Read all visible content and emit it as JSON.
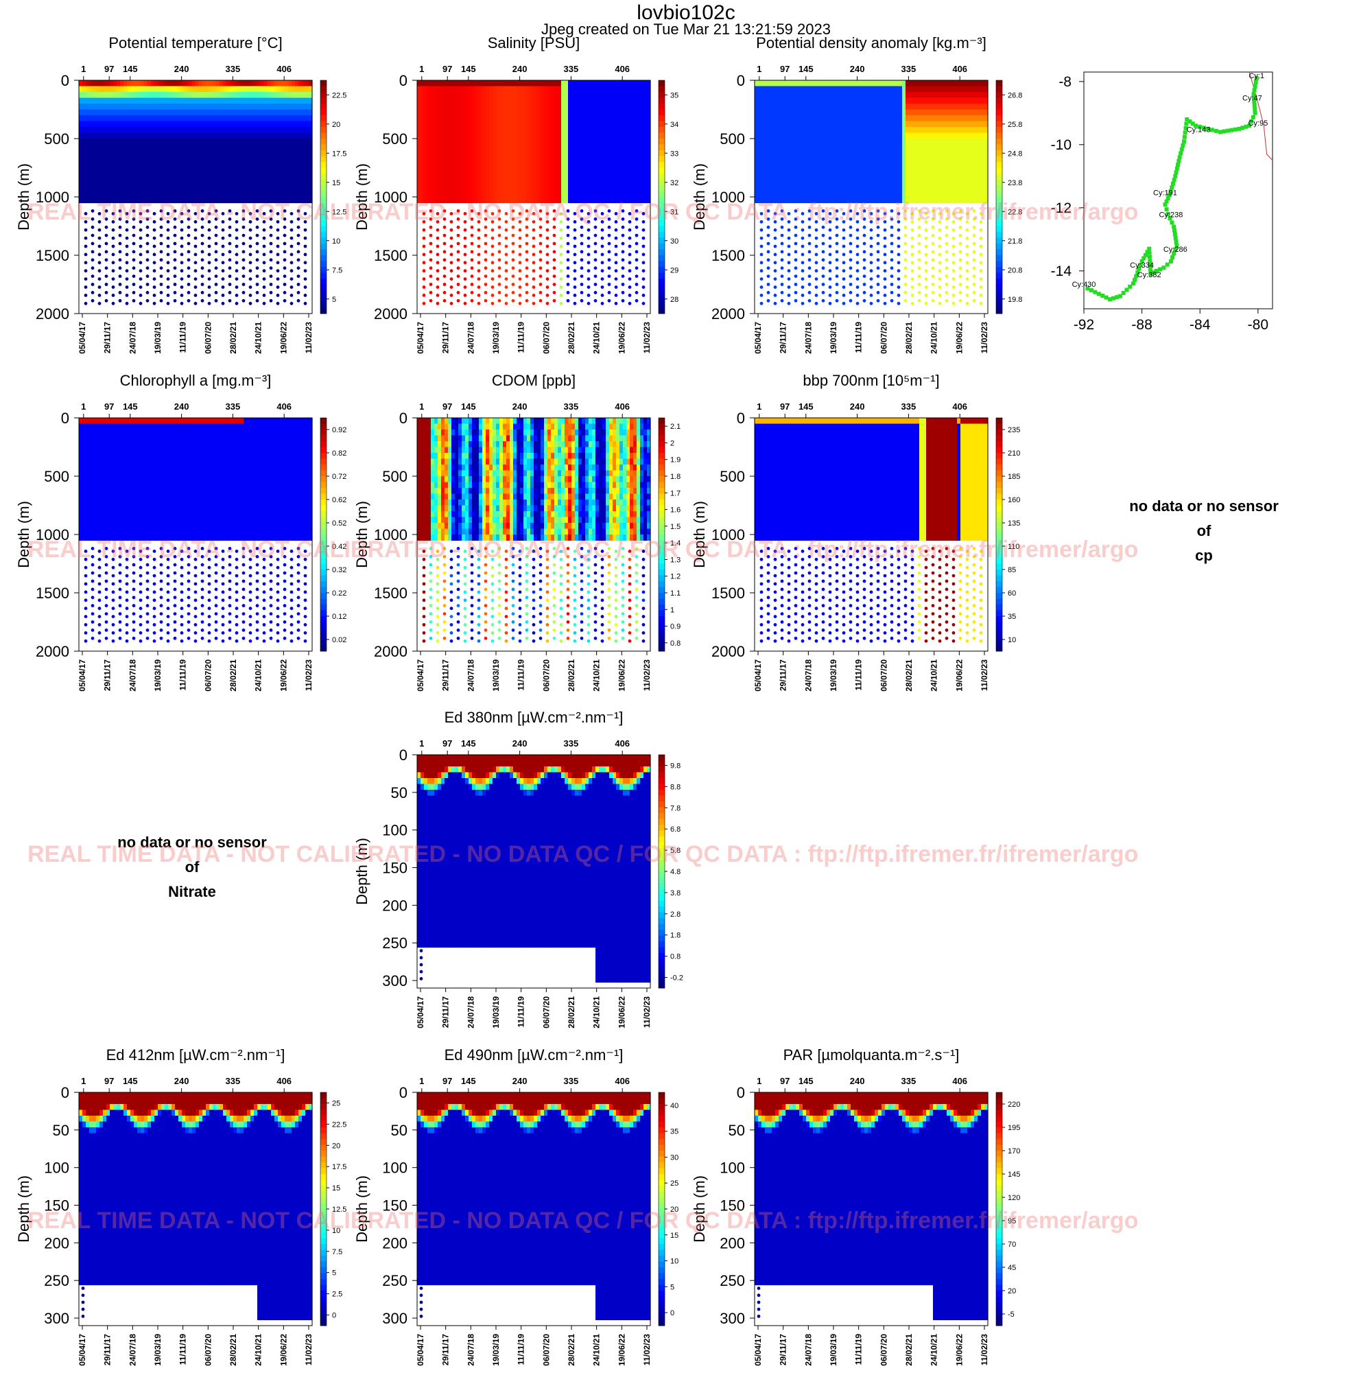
{
  "header": {
    "title": "lovbio102c",
    "subtitle": "Jpeg created on  Tue Mar 21 13:21:59 2023"
  },
  "watermark": "REAL TIME DATA - NOT CALIBRATED - NO DATA QC  /  FOR QC DATA : ftp://ftp.ifremer.fr/ifremer/argo",
  "common": {
    "cycle_ticks": [
      "1",
      "97",
      "145",
      "240",
      "335",
      "406"
    ],
    "date_ticks": [
      "05/04/17",
      "29/11/17",
      "24/07/18",
      "19/03/19",
      "11/11/19",
      "06/07/20",
      "28/02/21",
      "24/10/21",
      "19/06/22",
      "11/02/23"
    ],
    "ylabel": "Depth (m)"
  },
  "no_data": [
    {
      "line1": "no data or no sensor",
      "line2": "of",
      "line3": "cp"
    },
    {
      "line1": "no data or no sensor",
      "line2": "of",
      "line3": "Nitrate"
    }
  ],
  "chart_data": [
    {
      "type": "heatmap",
      "title": "Potential temperature [°C]",
      "ylabel": "Depth (m)",
      "ylim": [
        2000,
        0
      ],
      "y_ticks": [
        "0",
        "500",
        "1000",
        "1500",
        "2000"
      ],
      "colorbar": [
        "22.5",
        "20",
        "17.5",
        "15",
        "12.5",
        "10",
        "7.5",
        "5"
      ],
      "colorscale": "jet"
    },
    {
      "type": "heatmap",
      "title": "Salinity [PSU]",
      "ylabel": "Depth (m)",
      "ylim": [
        2000,
        0
      ],
      "y_ticks": [
        "0",
        "500",
        "1000",
        "1500",
        "2000"
      ],
      "colorbar": [
        "35",
        "34",
        "33",
        "32",
        "31",
        "30",
        "29",
        "28"
      ],
      "colorscale": "jet"
    },
    {
      "type": "heatmap",
      "title": "Potential density anomaly [kg.m⁻³]",
      "ylabel": "Depth (m)",
      "ylim": [
        2000,
        0
      ],
      "y_ticks": [
        "0",
        "500",
        "1000",
        "1500",
        "2000"
      ],
      "colorbar": [
        "26.8",
        "25.8",
        "24.8",
        "23.8",
        "22.8",
        "21.8",
        "20.8",
        "19.8"
      ],
      "colorscale": "jet"
    },
    {
      "type": "scatter",
      "title": "",
      "xlim": [
        -92,
        -79
      ],
      "ylim": [
        -15.2,
        -7.7
      ],
      "x_ticks": [
        "-92",
        "-88",
        "-84",
        "-80"
      ],
      "y_ticks": [
        "-8",
        "-10",
        "-12",
        "-14"
      ],
      "series_color": "#22dd22",
      "labels": [
        "Cy:1",
        "Cy:47",
        "Cy:95",
        "Cy:143",
        "Cy:191",
        "Cy:238",
        "Cy:286",
        "Cy:334",
        "Cy:382",
        "Cy:430"
      ],
      "track_lon": [
        -80.1,
        -80.3,
        -80.2,
        -80.6,
        -81.3,
        -82.6,
        -84.3,
        -84.9,
        -85.1,
        -85.4,
        -85.7,
        -86.1,
        -86.4,
        -86.2,
        -85.8,
        -85.6,
        -86.0,
        -86.5,
        -87.0,
        -87.4,
        -87.5,
        -88.0,
        -88.6,
        -89.5,
        -90.2,
        -92.0
      ],
      "track_lat": [
        -7.9,
        -8.4,
        -9.0,
        -9.4,
        -9.5,
        -9.6,
        -9.4,
        -9.2,
        -9.9,
        -10.4,
        -11.0,
        -11.6,
        -11.9,
        -12.2,
        -12.6,
        -13.2,
        -13.7,
        -13.9,
        -14.0,
        -14.1,
        -13.3,
        -13.7,
        -14.4,
        -14.8,
        -14.9,
        -14.5
      ]
    },
    {
      "type": "heatmap",
      "title": "Chlorophyll a [mg.m⁻³]",
      "ylabel": "Depth (m)",
      "ylim": [
        2000,
        0
      ],
      "y_ticks": [
        "0",
        "500",
        "1000",
        "1500",
        "2000"
      ],
      "colorbar": [
        "0.92",
        "0.82",
        "0.72",
        "0.62",
        "0.52",
        "0.42",
        "0.32",
        "0.22",
        "0.12",
        "0.02"
      ],
      "colorscale": "jet"
    },
    {
      "type": "heatmap",
      "title": "CDOM  [ppb]",
      "ylabel": "Depth (m)",
      "ylim": [
        2000,
        0
      ],
      "y_ticks": [
        "0",
        "500",
        "1000",
        "1500",
        "2000"
      ],
      "colorbar": [
        "2.1",
        "2",
        "1.9",
        "1.8",
        "1.7",
        "1.6",
        "1.5",
        "1.4",
        "1.3",
        "1.2",
        "1.1",
        "1",
        "0.9",
        "0.8"
      ],
      "colorscale": "jet"
    },
    {
      "type": "heatmap",
      "title": "bbp 700nm [10⁵m⁻¹]",
      "ylabel": "Depth (m)",
      "ylim": [
        2000,
        0
      ],
      "y_ticks": [
        "0",
        "500",
        "1000",
        "1500",
        "2000"
      ],
      "colorbar": [
        "235",
        "210",
        "185",
        "160",
        "135",
        "110",
        "85",
        "60",
        "35",
        "10"
      ],
      "colorscale": "jet"
    },
    {
      "type": "heatmap",
      "title": "Ed 380nm [µW.cm⁻².nm⁻¹]",
      "ylabel": "Depth (m)",
      "ylim": [
        310,
        0
      ],
      "y_ticks": [
        "0",
        "50",
        "100",
        "150",
        "200",
        "250",
        "300"
      ],
      "colorbar": [
        "9.8",
        "8.8",
        "7.8",
        "6.8",
        "5.8",
        "4.8",
        "3.8",
        "2.8",
        "1.8",
        "0.8",
        "-0.2"
      ],
      "colorscale": "jet"
    },
    {
      "type": "heatmap",
      "title": "Ed 412nm [µW.cm⁻².nm⁻¹]",
      "ylabel": "Depth (m)",
      "ylim": [
        310,
        0
      ],
      "y_ticks": [
        "0",
        "50",
        "100",
        "150",
        "200",
        "250",
        "300"
      ],
      "colorbar": [
        "25",
        "22.5",
        "20",
        "17.5",
        "15",
        "12.5",
        "10",
        "7.5",
        "5",
        "2.5",
        "0"
      ],
      "colorscale": "jet"
    },
    {
      "type": "heatmap",
      "title": "Ed 490nm [µW.cm⁻².nm⁻¹]",
      "ylabel": "Depth (m)",
      "ylim": [
        310,
        0
      ],
      "y_ticks": [
        "0",
        "50",
        "100",
        "150",
        "200",
        "250",
        "300"
      ],
      "colorbar": [
        "40",
        "35",
        "30",
        "25",
        "20",
        "15",
        "10",
        "5",
        "0"
      ],
      "colorscale": "jet"
    },
    {
      "type": "heatmap",
      "title": "PAR [µmolquanta.m⁻².s⁻¹]",
      "ylabel": "Depth (m)",
      "ylim": [
        310,
        0
      ],
      "y_ticks": [
        "0",
        "50",
        "100",
        "150",
        "200",
        "250",
        "300"
      ],
      "colorbar": [
        "220",
        "195",
        "170",
        "145",
        "120",
        "95",
        "70",
        "45",
        "20",
        "-5"
      ],
      "colorscale": "jet"
    }
  ]
}
